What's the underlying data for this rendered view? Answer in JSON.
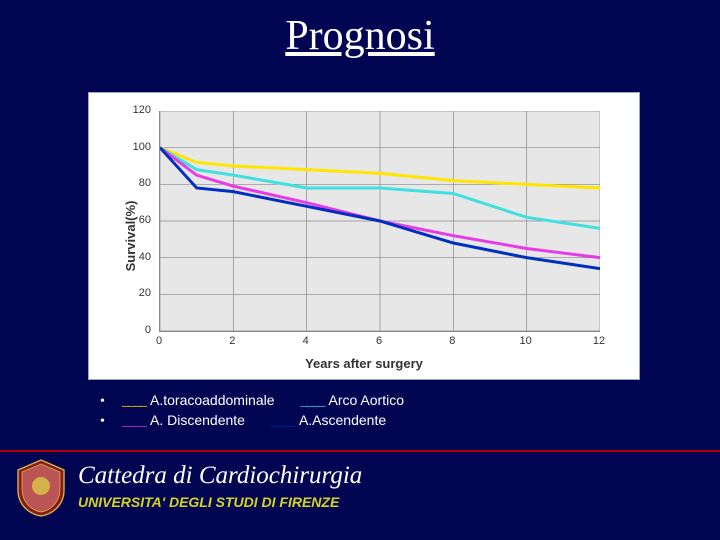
{
  "title": "Prognosi",
  "chart": {
    "type": "line",
    "ylabel": "Survival(%)",
    "xlabel": "Years after surgery",
    "xlim": [
      0,
      12
    ],
    "xtick_step": 2,
    "ylim": [
      0,
      120
    ],
    "ytick_step": 20,
    "background_color": "#e7e7e7",
    "grid_color": "#888888",
    "tick_fontsize": 11,
    "label_fontsize": 13,
    "line_width": 3,
    "series": [
      {
        "name": "A.toracoaddominale",
        "color": "#ffe600",
        "x": [
          0,
          1,
          2,
          4,
          6,
          8,
          10,
          12
        ],
        "y": [
          100,
          92,
          90,
          88,
          86,
          82,
          80,
          78
        ]
      },
      {
        "name": "Arco Aortico",
        "color": "#3fe0e0",
        "x": [
          0,
          1,
          2,
          4,
          6,
          8,
          10,
          12
        ],
        "y": [
          100,
          88,
          85,
          78,
          78,
          75,
          62,
          56
        ]
      },
      {
        "name": "A. Discendente",
        "color": "#e63be6",
        "x": [
          0,
          1,
          2,
          4,
          6,
          8,
          10,
          12
        ],
        "y": [
          100,
          85,
          79,
          70,
          60,
          52,
          45,
          40
        ]
      },
      {
        "name": "A.Ascendente",
        "color": "#002fbf",
        "x": [
          0,
          1,
          2,
          4,
          6,
          8,
          10,
          12
        ],
        "y": [
          100,
          78,
          76,
          68,
          60,
          48,
          40,
          34
        ]
      }
    ]
  },
  "legend": {
    "rows": [
      [
        {
          "swatch_color": "#ffe600",
          "label": "A.toracoaddominale"
        },
        {
          "swatch_color": "#3fe0e0",
          "label": "Arco Aortico"
        }
      ],
      [
        {
          "swatch_color": "#e63be6",
          "label": "A. Discendente"
        },
        {
          "swatch_color": "#002fbf",
          "label": "A.Ascendente"
        }
      ]
    ],
    "swatch_text": "____",
    "bullet": "•",
    "text_color": "#ffffff"
  },
  "footer": {
    "rule_color": "#b00000",
    "department": "Cattedra di Cardiochirurgia",
    "university": "UNIVERSITA' DEGLI STUDI DI FIRENZE",
    "university_color": "#d7d420"
  },
  "slide_bg": "#010552"
}
